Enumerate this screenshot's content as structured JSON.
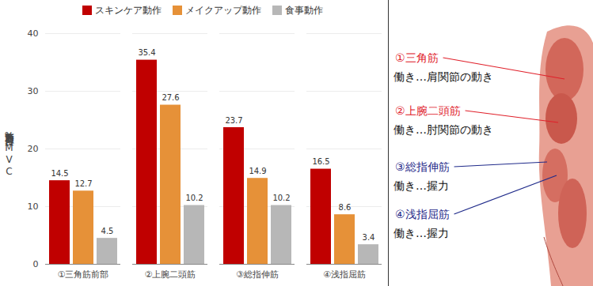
{
  "chart_data": {
    "type": "bar",
    "y_label": "筋力負荷度合ー%MVC",
    "categories": [
      "①三角筋前部",
      "②上腕二頭筋",
      "③総指伸筋",
      "④浅指屈筋"
    ],
    "series": [
      {
        "name": "スキンケア動作",
        "color": "#c00000",
        "values": [
          14.5,
          35.4,
          23.7,
          16.5
        ]
      },
      {
        "name": "メイクアップ動作",
        "color": "#e69138",
        "values": [
          12.7,
          27.6,
          14.9,
          8.6
        ]
      },
      {
        "name": "食事動作",
        "color": "#b7b7b7",
        "values": [
          4.5,
          10.2,
          10.2,
          3.4
        ]
      }
    ],
    "ylim": [
      0,
      40
    ],
    "yticks": [
      0,
      10,
      20,
      30,
      40
    ],
    "grid": true,
    "legend": "top",
    "data_labels": true,
    "annotations": [
      {
        "title": "①三角筋",
        "text": "働き…肩関節の動き",
        "color": "#e0202a"
      },
      {
        "title": "②上腕二頭筋",
        "text": "働き…肘関節の動き",
        "color": "#e0202a"
      },
      {
        "title": "③総指伸筋",
        "text": "働き…握力",
        "color": "#1f2a8a"
      },
      {
        "title": "④浅指屈筋",
        "text": "働き…握力",
        "color": "#1f2a8a"
      }
    ]
  }
}
